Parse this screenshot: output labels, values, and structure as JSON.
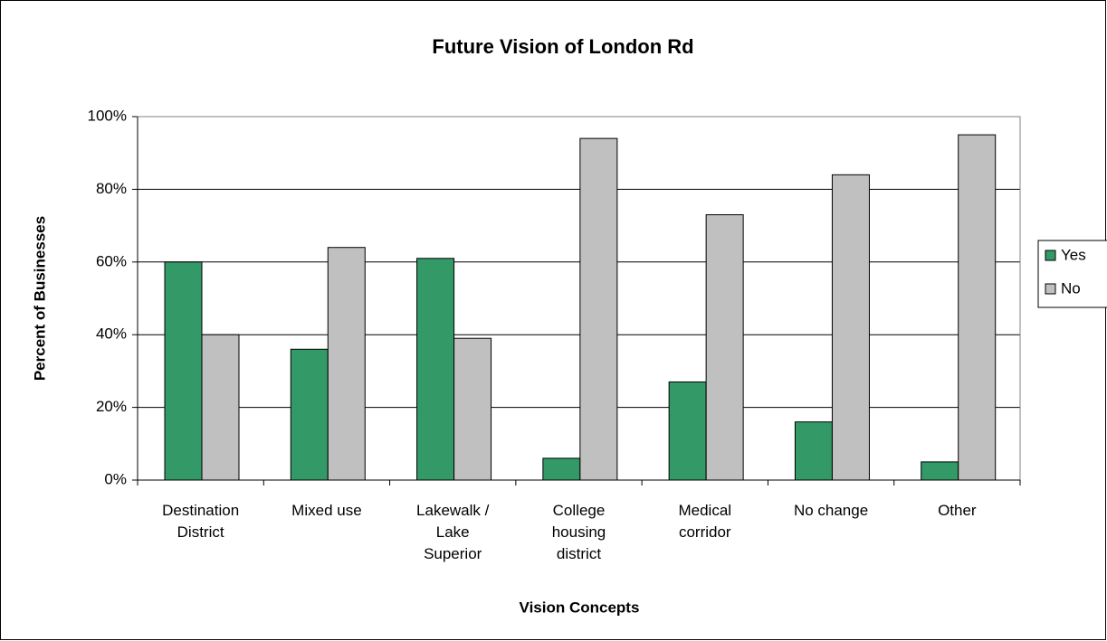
{
  "chart_data": {
    "type": "bar",
    "title": "Future Vision of London Rd",
    "x_label": "Vision Concepts",
    "y_label": "Percent of Businesses",
    "categories": [
      "Destination District",
      "Mixed use",
      "Lakewalk / Lake Superior",
      "College housing district",
      "Medical corridor",
      "No change",
      "Other"
    ],
    "series": [
      {
        "name": "Yes",
        "color": "#339966",
        "values": [
          60,
          36,
          61,
          6,
          27,
          16,
          5
        ]
      },
      {
        "name": "No",
        "color": "#c0c0c0",
        "values": [
          40,
          64,
          39,
          94,
          73,
          84,
          95
        ]
      }
    ],
    "ylim": [
      0,
      100
    ],
    "yticks": [
      {
        "value": 0,
        "label": "0%"
      },
      {
        "value": 20,
        "label": "20%"
      },
      {
        "value": 40,
        "label": "40%"
      },
      {
        "value": 60,
        "label": "60%"
      },
      {
        "value": 80,
        "label": "80%"
      },
      {
        "value": 100,
        "label": "100%"
      }
    ],
    "grid": true,
    "legend": "right"
  }
}
